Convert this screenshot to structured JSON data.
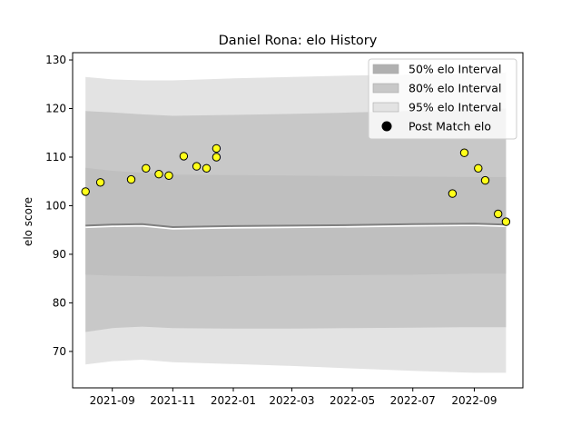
{
  "chart_data": {
    "type": "line",
    "title": "Daniel Rona: elo History",
    "xlabel": "",
    "ylabel": "elo score",
    "xlim": [
      "2021-07-23",
      "2022-10-20"
    ],
    "ylim": [
      62.5,
      131.5
    ],
    "x_ticks": [
      "2021-09",
      "2021-11",
      "2022-01",
      "2022-03",
      "2022-05",
      "2022-07",
      "2022-09"
    ],
    "y_ticks": [
      70,
      80,
      90,
      100,
      110,
      120,
      130
    ],
    "legend_position": "top-right",
    "grid": false,
    "colors": {
      "band_50": "#b0b0b0",
      "band_80": "#c8c8c8",
      "band_95": "#e3e3e3",
      "mean_line": "#808080",
      "point_fill": "#ffff1a",
      "point_edge": "#000000"
    },
    "legend": [
      {
        "label": "50% elo Interval",
        "kind": "band_50"
      },
      {
        "label": "80% elo Interval",
        "kind": "band_80"
      },
      {
        "label": "95% elo Interval",
        "kind": "band_95"
      },
      {
        "label": "Post Match elo",
        "kind": "point"
      }
    ],
    "bands": {
      "x": [
        "2021-08-05",
        "2021-09-01",
        "2021-10-01",
        "2021-11-01",
        "2022-01-01",
        "2022-03-01",
        "2022-05-01",
        "2022-07-01",
        "2022-09-01",
        "2022-10-03"
      ],
      "mean": [
        95.9,
        96.1,
        96.2,
        95.6,
        95.8,
        95.9,
        96.0,
        96.2,
        96.3,
        96.1
      ],
      "p50_low": [
        95.8,
        95.9,
        96.0,
        95.4,
        95.5,
        95.6,
        95.7,
        95.8,
        95.8,
        95.7
      ],
      "p50_high": [
        107.8,
        107.2,
        106.8,
        106.4,
        106.3,
        106.2,
        106.1,
        106.0,
        105.9,
        105.9
      ],
      "p80_low": [
        85.8,
        85.6,
        85.5,
        85.4,
        85.5,
        85.6,
        85.7,
        85.8,
        86.0,
        86.0
      ],
      "p80_high": [
        119.5,
        119.2,
        118.8,
        118.5,
        118.7,
        118.9,
        119.2,
        119.5,
        119.8,
        120.0
      ],
      "p95_low": [
        67.3,
        68.0,
        68.3,
        67.8,
        67.4,
        67.0,
        66.5,
        66.0,
        65.6,
        65.6
      ],
      "p95_high": [
        126.5,
        126.0,
        125.8,
        125.8,
        126.2,
        126.5,
        126.8,
        127.0,
        127.2,
        127.4
      ],
      "inner_low": [
        74.0,
        74.8,
        75.1,
        74.8,
        74.7,
        74.7,
        74.8,
        74.9,
        75.0,
        75.0
      ]
    },
    "points": [
      {
        "x": "2021-08-05",
        "y": 102.9
      },
      {
        "x": "2021-08-20",
        "y": 104.8
      },
      {
        "x": "2021-09-20",
        "y": 105.4
      },
      {
        "x": "2021-10-05",
        "y": 107.7
      },
      {
        "x": "2021-10-18",
        "y": 106.5
      },
      {
        "x": "2021-10-28",
        "y": 106.2
      },
      {
        "x": "2021-11-12",
        "y": 110.2
      },
      {
        "x": "2021-11-25",
        "y": 108.1
      },
      {
        "x": "2021-12-05",
        "y": 107.7
      },
      {
        "x": "2021-12-15",
        "y": 110.0
      },
      {
        "x": "2021-12-15",
        "y": 111.8
      },
      {
        "x": "2022-08-10",
        "y": 102.5
      },
      {
        "x": "2022-08-22",
        "y": 110.9
      },
      {
        "x": "2022-09-05",
        "y": 107.7
      },
      {
        "x": "2022-09-12",
        "y": 105.2
      },
      {
        "x": "2022-09-25",
        "y": 98.3
      },
      {
        "x": "2022-10-03",
        "y": 96.7
      }
    ]
  }
}
